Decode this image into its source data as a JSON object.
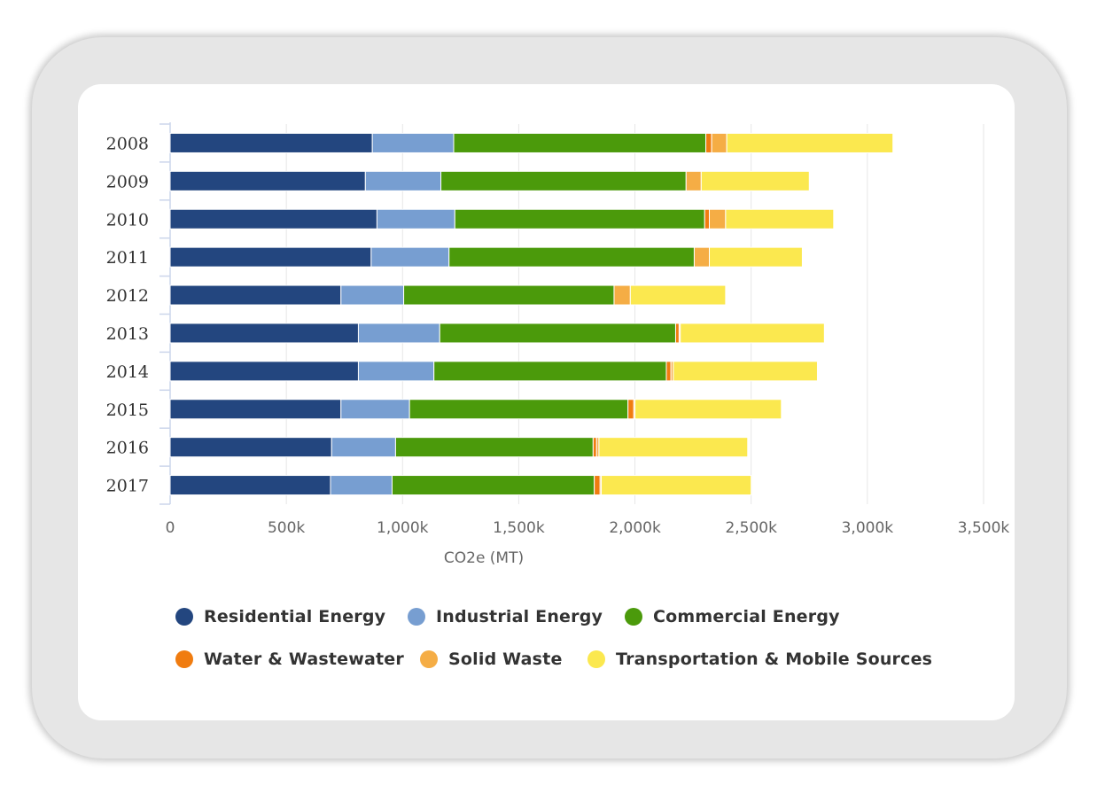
{
  "chart_data": {
    "type": "bar",
    "orientation": "horizontal",
    "stacked": true,
    "categories": [
      "2008",
      "2009",
      "2010",
      "2011",
      "2012",
      "2013",
      "2014",
      "2015",
      "2016",
      "2017"
    ],
    "series": [
      {
        "name": "Residential Energy",
        "color": "#23467f",
        "values": [
          870000,
          840000,
          890000,
          865000,
          735000,
          810000,
          810000,
          735000,
          695000,
          690000
        ]
      },
      {
        "name": "Industrial Energy",
        "color": "#779ed1",
        "values": [
          350000,
          325000,
          335000,
          335000,
          270000,
          350000,
          325000,
          295000,
          275000,
          265000
        ]
      },
      {
        "name": "Commercial Energy",
        "color": "#4b9a0b",
        "values": [
          1085000,
          1055000,
          1075000,
          1055000,
          905000,
          1015000,
          1000000,
          940000,
          850000,
          870000
        ]
      },
      {
        "name": "Water & Wastewater",
        "color": "#f07c10",
        "values": [
          25000,
          0,
          20000,
          0,
          0,
          15000,
          20000,
          25000,
          15000,
          25000
        ]
      },
      {
        "name": "Solid Waste",
        "color": "#f5ad45",
        "values": [
          65000,
          65000,
          70000,
          65000,
          70000,
          5000,
          10000,
          5000,
          10000,
          5000
        ]
      },
      {
        "name": "Transportation & Mobile Sources",
        "color": "#fbe84f",
        "values": [
          715000,
          465000,
          465000,
          400000,
          410000,
          620000,
          620000,
          630000,
          640000,
          645000
        ]
      }
    ],
    "xlabel": "CO2e (MT)",
    "ylabel": "",
    "xlim": [
      0,
      3500000
    ],
    "x_ticks": [
      0,
      500000,
      1000000,
      1500000,
      2000000,
      2500000,
      3000000,
      3500000
    ],
    "x_tick_labels": [
      "0",
      "500k",
      "1,000k",
      "1,500k",
      "2,000k",
      "2,500k",
      "3,000k",
      "3,500k"
    ],
    "grid": "vertical",
    "legend_position": "bottom"
  }
}
